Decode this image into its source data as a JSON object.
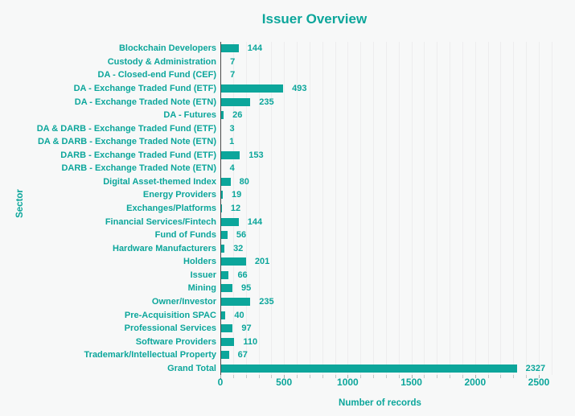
{
  "title": "Issuer Overview",
  "colors": {
    "accent": "#0ca69b",
    "background": "#f7f8f8",
    "gridline": "#ededee",
    "axis_line": "#4a4a4a",
    "tick": "#c4c7c7"
  },
  "chart_data": {
    "type": "bar",
    "orientation": "horizontal",
    "title": "Issuer Overview",
    "xlabel": "Number of records",
    "ylabel": "Sector",
    "xlim": [
      0,
      2500
    ],
    "x_tick_labels": [
      "0",
      "500",
      "1000",
      "1500",
      "2000",
      "2500"
    ],
    "x_ticks": [
      0,
      500,
      1000,
      1500,
      2000,
      2500
    ],
    "minor_grid_step": 100,
    "grid": "vertical minor gridlines every 100",
    "legend": "none",
    "bar_color": "#0ca69b",
    "value_labels_shown": true,
    "categories": [
      "Blockchain Developers",
      "Custody & Administration",
      "DA - Closed-end Fund (CEF)",
      "DA - Exchange Traded Fund (ETF)",
      "DA - Exchange Traded Note (ETN)",
      "DA - Futures",
      "DA & DARB - Exchange Traded Fund (ETF)",
      "DA & DARB - Exchange Traded Note (ETN)",
      "DARB - Exchange Traded Fund (ETF)",
      "DARB - Exchange Traded Note (ETN)",
      "Digital Asset-themed Index",
      "Energy Providers",
      "Exchanges/Platforms",
      "Financial Services/Fintech",
      "Fund of Funds",
      "Hardware Manufacturers",
      "Holders",
      "Issuer",
      "Mining",
      "Owner/Investor",
      "Pre-Acquisition SPAC",
      "Professional Services",
      "Software Providers",
      "Trademark/Intellectual Property",
      "Grand Total"
    ],
    "values": [
      144,
      7,
      7,
      493,
      235,
      26,
      3,
      1,
      153,
      4,
      80,
      19,
      12,
      144,
      56,
      32,
      201,
      66,
      95,
      235,
      40,
      97,
      110,
      67,
      2327
    ]
  }
}
